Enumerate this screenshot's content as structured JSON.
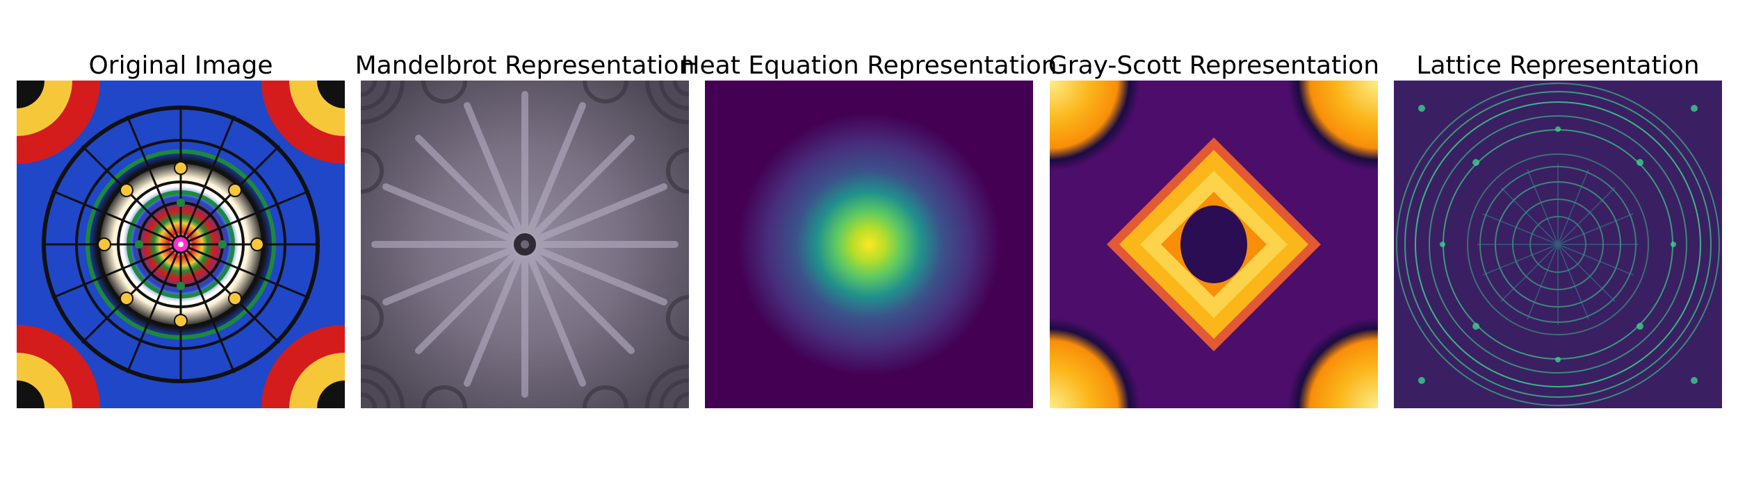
{
  "panels": [
    {
      "title": "Original Image"
    },
    {
      "title": "Mandelbrot Representation"
    },
    {
      "title": "Heat Equation Representation"
    },
    {
      "title": "Gray-Scott Representation"
    },
    {
      "title": "Lattice Representation"
    }
  ],
  "colors": {
    "kaleidoscope_blue": "#1f47c8",
    "kaleidoscope_red": "#d41c1c",
    "kaleidoscope_yellow": "#f7c73a",
    "kaleidoscope_green": "#1c8a3a",
    "mandelbrot_gray": "#7a7183",
    "viridis_dark": "#440154",
    "viridis_bright": "#fde725",
    "inferno_dark": "#2a0d52",
    "inferno_bright": "#fcee8a",
    "lattice_green": "#3ad28a"
  }
}
